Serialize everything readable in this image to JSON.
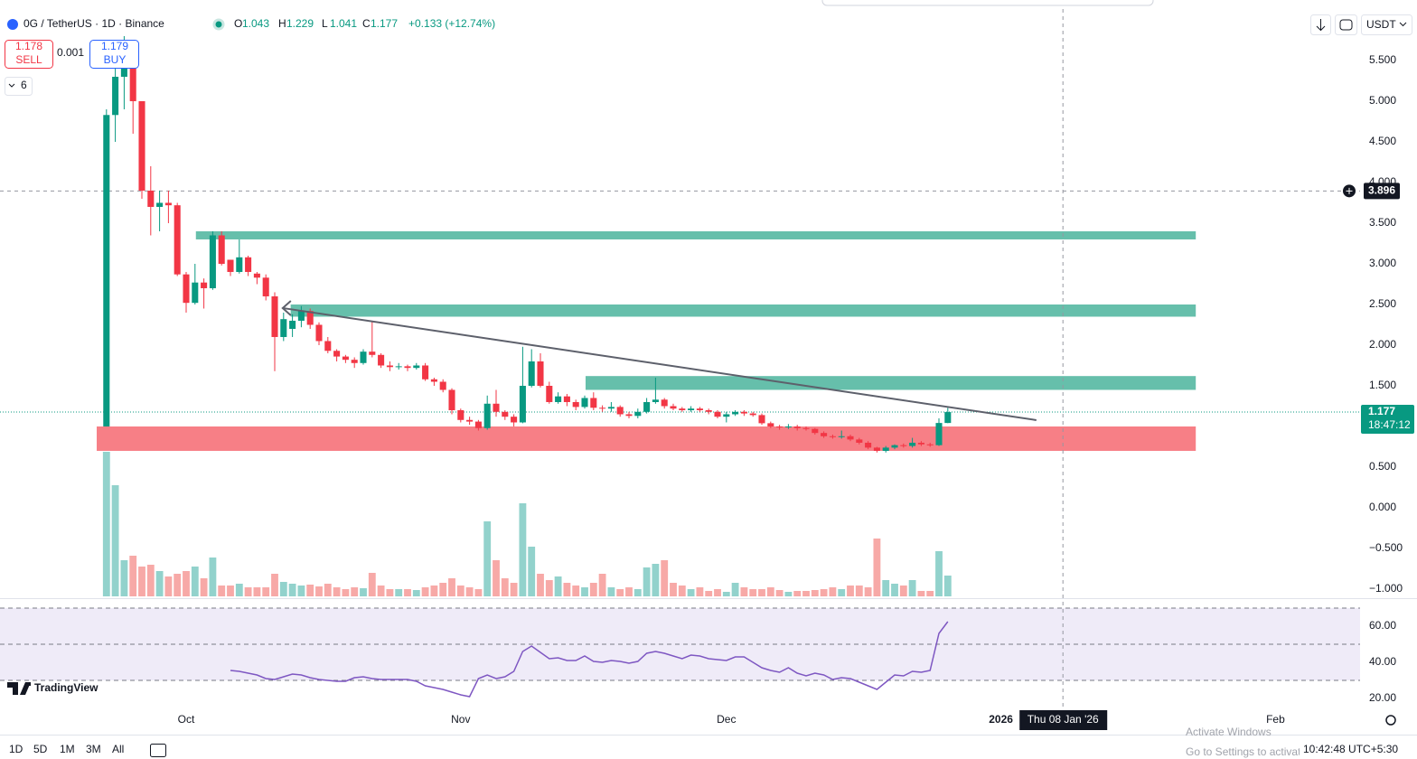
{
  "header": {
    "symbol": "0G / TetherUS · 1D · Binance",
    "open_label": "O",
    "open": "1.043",
    "high_label": "H",
    "high": "1.229",
    "low_label": "L",
    "low": "1.041",
    "close_label": "C",
    "close": "1.177",
    "change": "+0.133 (+12.74%)"
  },
  "trade": {
    "sell_price": "1.178",
    "sell_label": "SELL",
    "spread": "0.001",
    "buy_price": "1.179",
    "buy_label": "BUY"
  },
  "indicator_count": "6",
  "currency": "USDT",
  "chart_data": {
    "type": "candlestick",
    "up_color": "#089981",
    "down_color": "#f23645",
    "volume_up_color": "#92d2cc",
    "volume_down_color": "#f7a9a7",
    "xlim": [
      -12.02,
      141.55
    ],
    "xticks": [
      {
        "value": 9,
        "label": "Oct"
      },
      {
        "value": 40,
        "label": "Nov"
      },
      {
        "value": 70,
        "label": "Dec"
      },
      {
        "value": 101,
        "label": "2026"
      },
      {
        "value": 132,
        "label": "Feb"
      }
    ],
    "ylim": [
      -1.089,
      6.133
    ],
    "yticks": [
      {
        "value": 5.5,
        "label": "5.500"
      },
      {
        "value": 5,
        "label": "5.000"
      },
      {
        "value": 4.5,
        "label": "4.500"
      },
      {
        "value": 4,
        "label": "4.000"
      },
      {
        "value": 3.5,
        "label": "3.500"
      },
      {
        "value": 3,
        "label": "3.000"
      },
      {
        "value": 2.5,
        "label": "2.500"
      },
      {
        "value": 2,
        "label": "2.000"
      },
      {
        "value": 1.5,
        "label": "1.500"
      },
      {
        "value": 0.5,
        "label": "0.500"
      },
      {
        "value": 0,
        "label": "0.000"
      },
      {
        "value": -0.5,
        "label": "−0.500"
      },
      {
        "value": -1,
        "label": "−1.000"
      }
    ],
    "open": [
      1.0,
      4.83,
      5.3,
      5.65,
      5.0,
      3.9,
      3.7,
      3.75,
      3.72,
      2.87,
      2.52,
      2.77,
      2.7,
      3.35,
      3.05,
      2.9,
      3.08,
      2.88,
      2.83,
      2.6,
      2.1,
      2.2,
      2.3,
      2.42,
      2.25,
      2.05,
      1.93,
      1.86,
      1.82,
      1.78,
      1.92,
      1.88,
      1.75,
      1.73,
      1.74,
      1.72,
      1.75,
      1.58,
      1.55,
      1.45,
      1.2,
      1.08,
      1.06,
      0.98,
      1.28,
      1.18,
      1.12,
      1.05,
      1.5,
      1.8,
      1.5,
      1.3,
      1.37,
      1.3,
      1.24,
      1.35,
      1.23,
      1.22,
      1.24,
      1.15,
      1.13,
      1.18,
      1.3,
      1.33,
      1.25,
      1.22,
      1.2,
      1.22,
      1.2,
      1.18,
      1.12,
      1.15,
      1.18,
      1.16,
      1.14,
      1.04,
      1.0,
      0.99,
      1.0,
      0.98,
      0.97,
      0.92,
      0.88,
      0.87,
      0.88,
      0.84,
      0.8,
      0.74,
      0.7,
      0.74,
      0.77,
      0.76,
      0.8,
      0.78,
      0.77,
      1.043
    ],
    "high": [
      4.9,
      5.6,
      5.8,
      5.75,
      5.0,
      4.2,
      3.9,
      3.9,
      3.75,
      2.9,
      3.0,
      2.82,
      3.4,
      3.4,
      3.05,
      3.3,
      3.1,
      2.9,
      2.87,
      2.65,
      2.4,
      2.38,
      2.48,
      2.45,
      2.28,
      2.1,
      1.95,
      1.88,
      1.85,
      1.95,
      2.3,
      1.9,
      1.8,
      1.78,
      1.76,
      1.78,
      1.78,
      1.6,
      1.58,
      1.47,
      1.22,
      1.12,
      1.08,
      1.38,
      1.45,
      1.2,
      1.15,
      1.98,
      1.95,
      1.9,
      1.55,
      1.42,
      1.4,
      1.33,
      1.38,
      1.42,
      1.26,
      1.3,
      1.26,
      1.18,
      1.22,
      1.35,
      1.6,
      1.35,
      1.28,
      1.24,
      1.25,
      1.24,
      1.22,
      1.2,
      1.18,
      1.2,
      1.2,
      1.18,
      1.16,
      1.06,
      1.02,
      1.03,
      1.02,
      1.0,
      0.98,
      0.94,
      0.9,
      0.95,
      0.9,
      0.86,
      0.82,
      0.75,
      0.76,
      0.78,
      0.79,
      0.86,
      0.82,
      0.8,
      1.1,
      1.229
    ],
    "low": [
      1.0,
      4.5,
      4.9,
      4.6,
      3.8,
      3.35,
      3.4,
      3.5,
      2.85,
      2.4,
      2.5,
      2.45,
      2.68,
      2.98,
      2.85,
      2.88,
      2.85,
      2.75,
      2.55,
      1.68,
      2.05,
      2.1,
      2.22,
      2.2,
      2.0,
      1.9,
      1.8,
      1.78,
      1.72,
      1.76,
      1.85,
      1.72,
      1.68,
      1.7,
      1.68,
      1.7,
      1.56,
      1.5,
      1.42,
      1.15,
      1.05,
      1.02,
      0.95,
      0.96,
      1.12,
      1.08,
      1.0,
      1.04,
      1.48,
      1.48,
      1.28,
      1.28,
      1.25,
      1.2,
      1.22,
      1.2,
      1.18,
      1.18,
      1.12,
      1.1,
      1.1,
      1.16,
      1.28,
      1.22,
      1.2,
      1.18,
      1.18,
      1.18,
      1.15,
      1.1,
      1.05,
      1.13,
      1.13,
      1.12,
      1.02,
      0.98,
      0.96,
      0.97,
      0.95,
      0.95,
      0.9,
      0.86,
      0.85,
      0.85,
      0.82,
      0.78,
      0.72,
      0.68,
      0.68,
      0.72,
      0.74,
      0.74,
      0.76,
      0.75,
      0.76,
      1.041
    ],
    "close": [
      4.83,
      5.3,
      5.65,
      5.0,
      3.9,
      3.7,
      3.75,
      3.72,
      2.87,
      2.52,
      2.77,
      2.7,
      3.35,
      3.0,
      2.9,
      3.08,
      2.9,
      2.83,
      2.6,
      2.1,
      2.32,
      2.3,
      2.42,
      2.25,
      2.05,
      1.93,
      1.86,
      1.82,
      1.78,
      1.92,
      1.88,
      1.75,
      1.73,
      1.74,
      1.72,
      1.75,
      1.58,
      1.55,
      1.45,
      1.2,
      1.08,
      1.06,
      0.98,
      1.28,
      1.18,
      1.12,
      1.05,
      1.5,
      1.8,
      1.5,
      1.3,
      1.37,
      1.3,
      1.24,
      1.35,
      1.23,
      1.22,
      1.24,
      1.15,
      1.13,
      1.18,
      1.3,
      1.33,
      1.25,
      1.22,
      1.2,
      1.22,
      1.2,
      1.18,
      1.12,
      1.15,
      1.18,
      1.16,
      1.14,
      1.04,
      1.0,
      0.99,
      1.0,
      0.98,
      0.97,
      0.92,
      0.88,
      0.87,
      0.88,
      0.84,
      0.8,
      0.74,
      0.7,
      0.74,
      0.77,
      0.76,
      0.8,
      0.78,
      0.77,
      1.043,
      1.177
    ],
    "volume": [
      160,
      123,
      40,
      45,
      33,
      35,
      28,
      22,
      25,
      28,
      33,
      20,
      43,
      12,
      12,
      14,
      10,
      10,
      10,
      25,
      16,
      14,
      12,
      13,
      11,
      14,
      10,
      8,
      10,
      9,
      26,
      12,
      8,
      8,
      8,
      7,
      10,
      12,
      15,
      20,
      12,
      10,
      8,
      83,
      40,
      20,
      15,
      103,
      55,
      25,
      18,
      22,
      15,
      12,
      10,
      15,
      25,
      10,
      8,
      10,
      8,
      32,
      36,
      40,
      15,
      12,
      8,
      10,
      6,
      8,
      5,
      15,
      10,
      8,
      8,
      10,
      7,
      5,
      6,
      6,
      7,
      8,
      10,
      8,
      12,
      12,
      10,
      64,
      18,
      14,
      12,
      18,
      6,
      6,
      50,
      23
    ],
    "zones": [
      {
        "low": 3.3,
        "high": 3.4,
        "start": 10.1,
        "end": 123,
        "color": "#66bfab"
      },
      {
        "low": 2.35,
        "high": 2.5,
        "start": 20.8,
        "end": 123,
        "color": "#66bfab"
      },
      {
        "low": 1.45,
        "high": 1.62,
        "start": 54.1,
        "end": 123,
        "color": "#66bfab"
      },
      {
        "low": 0.7,
        "high": 1.0,
        "start": -1.1,
        "end": 123,
        "color": "#f77f86"
      }
    ],
    "trendline": {
      "x": [
        19.9,
        105
      ],
      "y": [
        2.456,
        1.078
      ],
      "color": "#5d606b"
    },
    "last_price": {
      "value": 1.177,
      "countdown": "18:47:12"
    },
    "crosshair": {
      "x": 108,
      "y": 3.896,
      "x_label": "Thu 08 Jan '26"
    },
    "rsi_color": "#7e57c2",
    "rsi_ylim": [
      14,
      75
    ],
    "rsi_yticks": [
      {
        "value": 60,
        "label": "60.00"
      },
      {
        "value": 40,
        "label": "40.00"
      },
      {
        "value": 20,
        "label": "20.00"
      }
    ],
    "rsi_levels": [
      70,
      50,
      30
    ],
    "rsi": [
      null,
      null,
      null,
      null,
      null,
      null,
      null,
      null,
      null,
      null,
      null,
      null,
      null,
      null,
      35.5,
      35,
      34,
      33,
      31,
      30.5,
      32,
      33.5,
      33,
      31.5,
      30.5,
      30,
      29.5,
      29.5,
      31.5,
      32,
      31,
      30.5,
      30.5,
      30.5,
      30.5,
      29.5,
      27,
      26,
      25,
      23.5,
      22,
      21,
      31,
      33,
      31,
      32,
      35,
      46,
      49,
      45.5,
      42,
      42.5,
      41,
      41,
      43.5,
      40.5,
      40,
      41,
      40.5,
      39.5,
      40.5,
      45,
      46,
      45,
      43.5,
      42,
      44,
      43.5,
      42,
      41.5,
      41,
      43,
      43,
      40,
      37,
      35.5,
      34.5,
      37,
      34,
      32.5,
      34,
      33,
      30.5,
      31.5,
      31,
      29,
      27,
      25,
      29,
      33,
      32.5,
      35,
      34.5,
      35.5,
      56,
      62.5
    ]
  },
  "toolbar": {
    "ranges": [
      "1D",
      "5D",
      "1M",
      "3M",
      "All"
    ],
    "clock": "10:42:48 UTC+5:30"
  },
  "watermark": "TradingView",
  "os_notice": {
    "title": "Activate Windows",
    "text": "Go to Settings to activate Windows."
  }
}
